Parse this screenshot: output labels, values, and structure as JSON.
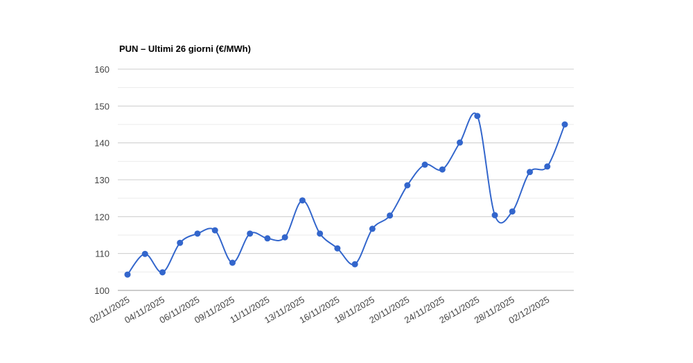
{
  "chart_data": {
    "type": "line",
    "title": "PUN – Ultimi 26 giorni (€/MWh)",
    "categories": [
      "02/11/2025",
      null,
      "04/11/2025",
      null,
      "06/11/2025",
      null,
      "09/11/2025",
      null,
      "11/11/2025",
      null,
      "13/11/2025",
      null,
      "16/11/2025",
      null,
      "18/11/2025",
      null,
      "20/11/2025",
      null,
      "24/11/2025",
      null,
      "26/11/2025",
      null,
      "28/11/2025",
      null,
      "02/12/2025",
      null
    ],
    "series": [
      {
        "color": "#3366cc",
        "values": [
          104.3,
          109.9,
          104.9,
          112.9,
          115.4,
          116.3,
          107.5,
          115.4,
          114.1,
          114.4,
          124.4,
          115.4,
          111.4,
          107.1,
          116.7,
          120.3,
          128.5,
          134.1,
          132.8,
          140.1,
          147.3,
          120.4,
          121.4,
          132.1,
          133.6,
          145.0
        ]
      }
    ],
    "ylim": [
      100,
      160
    ],
    "yticks": [
      100,
      110,
      120,
      130,
      140,
      150,
      160
    ],
    "minor_yticks": [
      105,
      115,
      125,
      135,
      145,
      155
    ],
    "grid": true,
    "smooth": true
  }
}
